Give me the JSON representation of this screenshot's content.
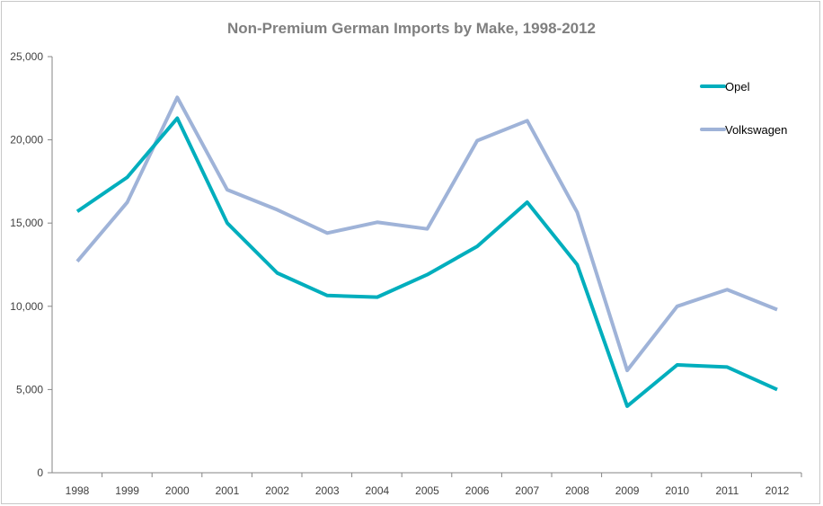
{
  "chart_data": {
    "type": "line",
    "title": "Non-Premium German Imports by Make, 1998-2012",
    "xlabel": "",
    "ylabel": "",
    "x": [
      "1998",
      "1999",
      "2000",
      "2001",
      "2002",
      "2003",
      "2004",
      "2005",
      "2006",
      "2007",
      "2008",
      "2009",
      "2010",
      "2011",
      "2012"
    ],
    "ylim": [
      0,
      25000
    ],
    "yticks": [
      0,
      5000,
      10000,
      15000,
      20000,
      25000
    ],
    "ytick_labels": [
      "0",
      "5,000",
      "10,000",
      "15,000",
      "20,000",
      "25,000"
    ],
    "grid": false,
    "legend_position": "top-right",
    "series": [
      {
        "name": "Opel",
        "color": "#00aebd",
        "values": [
          15700,
          17750,
          21300,
          15000,
          12000,
          10650,
          10550,
          11900,
          13600,
          16250,
          12500,
          4000,
          6480,
          6350,
          5000
        ]
      },
      {
        "name": "Volkswagen",
        "color": "#9fb3d8",
        "values": [
          12700,
          16250,
          22550,
          17000,
          15800,
          14400,
          15050,
          14650,
          19950,
          21150,
          15650,
          6150,
          10000,
          11000,
          9800
        ]
      }
    ]
  }
}
